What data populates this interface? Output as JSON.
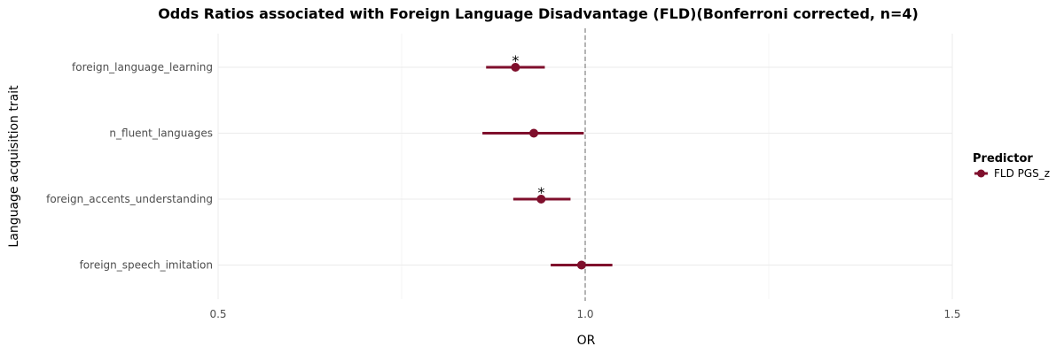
{
  "chart_data": {
    "type": "forest",
    "title": "Odds Ratios associated with Foreign Language Disadvantage (FLD)(Bonferroni corrected, n=4)",
    "xlabel": "OR",
    "ylabel": "Language acquisition trait",
    "xlim": [
      0.5,
      1.5
    ],
    "xticks": [
      "0.5",
      "1.0",
      "1.5"
    ],
    "reference_line": 1.0,
    "grid": true,
    "legend": {
      "title": "Predictor",
      "position": "right",
      "entries": [
        "FLD PGS_z"
      ]
    },
    "series": [
      {
        "name": "FLD PGS_z",
        "color": "#7f0f2c",
        "points": [
          {
            "label": "foreign_language_learning",
            "or": 0.905,
            "lower": 0.865,
            "upper": 0.945,
            "sig": "*"
          },
          {
            "label": "n_fluent_languages",
            "or": 0.93,
            "lower": 0.86,
            "upper": 0.998,
            "sig": ""
          },
          {
            "label": "foreign_accents_understanding",
            "or": 0.94,
            "lower": 0.902,
            "upper": 0.98,
            "sig": "*"
          },
          {
            "label": "foreign_speech_imitation",
            "or": 0.995,
            "lower": 0.953,
            "upper": 1.037,
            "sig": ""
          }
        ]
      }
    ]
  }
}
